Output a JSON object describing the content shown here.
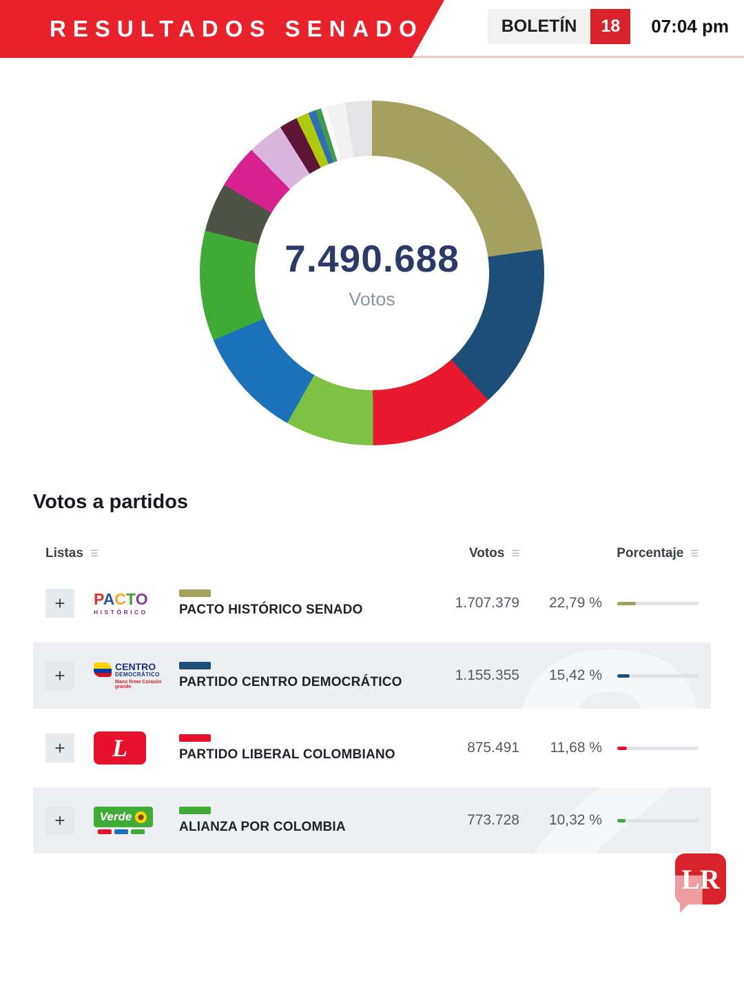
{
  "header": {
    "title": "RESULTADOS SENADO",
    "bulletin_label": "BOLETÍN",
    "bulletin_number": "18",
    "time": "07:04 pm"
  },
  "chart_data": {
    "type": "pie",
    "subtype": "donut",
    "center_value": "7.490.688",
    "center_label": "Votos",
    "total_votes": 7490688,
    "legend_position": "none",
    "segments": [
      {
        "label": "PACTO HISTÓRICO SENADO",
        "pct": 22.79,
        "color": "#a4a05f"
      },
      {
        "label": "PARTIDO CENTRO DEMOCRÁTICO",
        "pct": 15.42,
        "color": "#1d4e78"
      },
      {
        "label": "PARTIDO LIBERAL COLOMBIANO",
        "pct": 11.68,
        "color": "#e8192c"
      },
      {
        "label": "",
        "pct": 8.3,
        "color": "#7dc242"
      },
      {
        "label": "",
        "pct": 10.45,
        "color": "#1b72b8"
      },
      {
        "label": "ALIANZA POR COLOMBIA",
        "pct": 10.32,
        "color": "#3faa35"
      },
      {
        "label": "",
        "pct": 4.6,
        "color": "#4e5346"
      },
      {
        "label": "",
        "pct": 4.1,
        "color": "#d6218e"
      },
      {
        "label": "",
        "pct": 3.4,
        "color": "#d9b7dc"
      },
      {
        "label": "",
        "pct": 1.7,
        "color": "#5f1536"
      },
      {
        "label": "",
        "pct": 1.2,
        "color": "#afca0b"
      },
      {
        "label": "",
        "pct": 0.7,
        "color": "#2f6db4"
      },
      {
        "label": "",
        "pct": 0.55,
        "color": "#3f9c4c"
      },
      {
        "label": "",
        "pct": 0.5,
        "color": "#ffffff"
      },
      {
        "label": "",
        "pct": 1.8,
        "color": "#f2f2f3"
      },
      {
        "label": "",
        "pct": 2.49,
        "color": "#e4e4e6"
      }
    ]
  },
  "section": {
    "title": "Votos a partidos"
  },
  "table": {
    "expand_icon": "+",
    "sort_icon": "☰",
    "columns": [
      {
        "label": "Listas"
      },
      {
        "label": "Votos"
      },
      {
        "label": "Porcentaje"
      }
    ],
    "rows": [
      {
        "party": "PACTO HISTÓRICO SENADO",
        "votes": "1.707.379",
        "pct_label": "22,79 %",
        "pct": 22.79,
        "color": "#a4a05f",
        "logo": {
          "type": "pacto",
          "line1": "PACTO",
          "line2": "HISTÓRICO"
        }
      },
      {
        "party": "PARTIDO CENTRO DEMOCRÁTICO",
        "votes": "1.155.355",
        "pct_label": "15,42 %",
        "pct": 15.42,
        "color": "#1d4e78",
        "logo": {
          "type": "centro",
          "line1": "CENTRO",
          "line2": "DEMOCRÁTICO",
          "line3": "Mano firme Corazón grande"
        }
      },
      {
        "party": "PARTIDO LIBERAL COLOMBIANO",
        "votes": "875.491",
        "pct_label": "11,68 %",
        "pct": 11.68,
        "color": "#e8112d",
        "logo": {
          "type": "liberal",
          "letter": "L"
        }
      },
      {
        "party": "ALIANZA POR COLOMBIA",
        "votes": "773.728",
        "pct_label": "10,32 %",
        "pct": 10.32,
        "color": "#3faa35",
        "logo": {
          "type": "verde",
          "line1": "Verde"
        }
      }
    ]
  },
  "footer": {
    "logo_text": "LR"
  },
  "decor": {
    "watermark": "2"
  }
}
